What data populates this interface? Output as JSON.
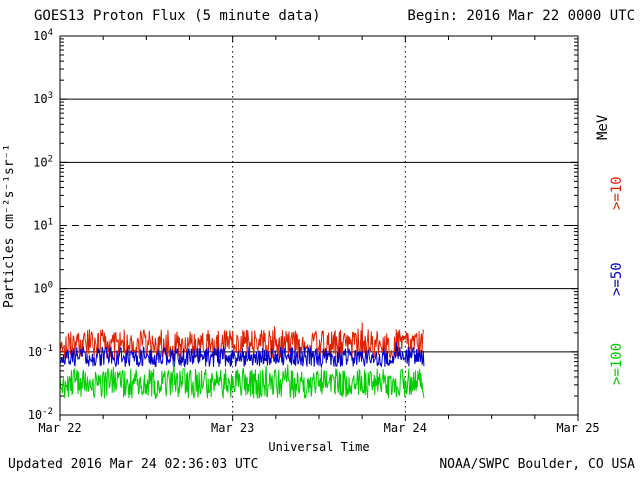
{
  "header": {
    "title": "GOES13 Proton Flux (5 minute data)",
    "begin": "Begin: 2016 Mar 22 0000 UTC"
  },
  "footer": {
    "updated": "Updated 2016 Mar 24 02:36:03 UTC",
    "source": "NOAA/SWPC Boulder, CO USA"
  },
  "axis_right": {
    "units": "MeV",
    "labels": [
      {
        "text": ">=10",
        "color": "#dd2200"
      },
      {
        "text": ">=50",
        "color": "#0000cc"
      },
      {
        "text": ">=100",
        "color": "#00cc00"
      }
    ]
  },
  "chart_data": {
    "type": "line",
    "title": "GOES13 Proton Flux (5 minute data)",
    "subtitle": "Begin: 2016 Mar 22 0000 UTC",
    "xlabel": "Universal Time",
    "ylabel": "Particles cm⁻²s⁻¹sr⁻¹",
    "y_scale": "log",
    "ylim_exp": [
      -2,
      4
    ],
    "y_ticks_exp": [
      4,
      3,
      2,
      1,
      0,
      -1,
      -2
    ],
    "x_span_days": 3,
    "x_ticks": [
      "Mar 22",
      "Mar 23",
      "Mar 24",
      "Mar 25"
    ],
    "hlines": [
      {
        "exp": 3,
        "style": "solid"
      },
      {
        "exp": 2,
        "style": "solid"
      },
      {
        "exp": 1,
        "style": "dashed"
      },
      {
        "exp": 0,
        "style": "solid"
      },
      {
        "exp": -1,
        "style": "solid"
      }
    ],
    "vlines_days": [
      1,
      2
    ],
    "sample_minutes": 5,
    "data_end_day": 2.108,
    "series": [
      {
        "key": "ge10",
        "name": ">=10 MeV",
        "color": "#dd2200",
        "approx_mean_flux": 0.13,
        "approx_range": [
          0.07,
          0.45
        ],
        "log10_mean": -0.88,
        "log10_noise": 0.24,
        "spike_prob": 0.03,
        "spike_log10": 0.3,
        "seed": 101
      },
      {
        "key": "ge50",
        "name": ">=50 MeV",
        "color": "#0000cc",
        "approx_mean_flux": 0.08,
        "approx_range": [
          0.05,
          0.14
        ],
        "log10_mean": -1.08,
        "log10_noise": 0.16,
        "spike_prob": 0.02,
        "spike_log10": 0.12,
        "seed": 202
      },
      {
        "key": "ge100",
        "name": ">=100 MeV",
        "color": "#00cc00",
        "approx_mean_flux": 0.032,
        "approx_range": [
          0.015,
          0.07
        ],
        "log10_mean": -1.5,
        "log10_noise": 0.24,
        "spike_prob": 0.03,
        "spike_log10": 0.15,
        "seed": 303
      }
    ]
  }
}
